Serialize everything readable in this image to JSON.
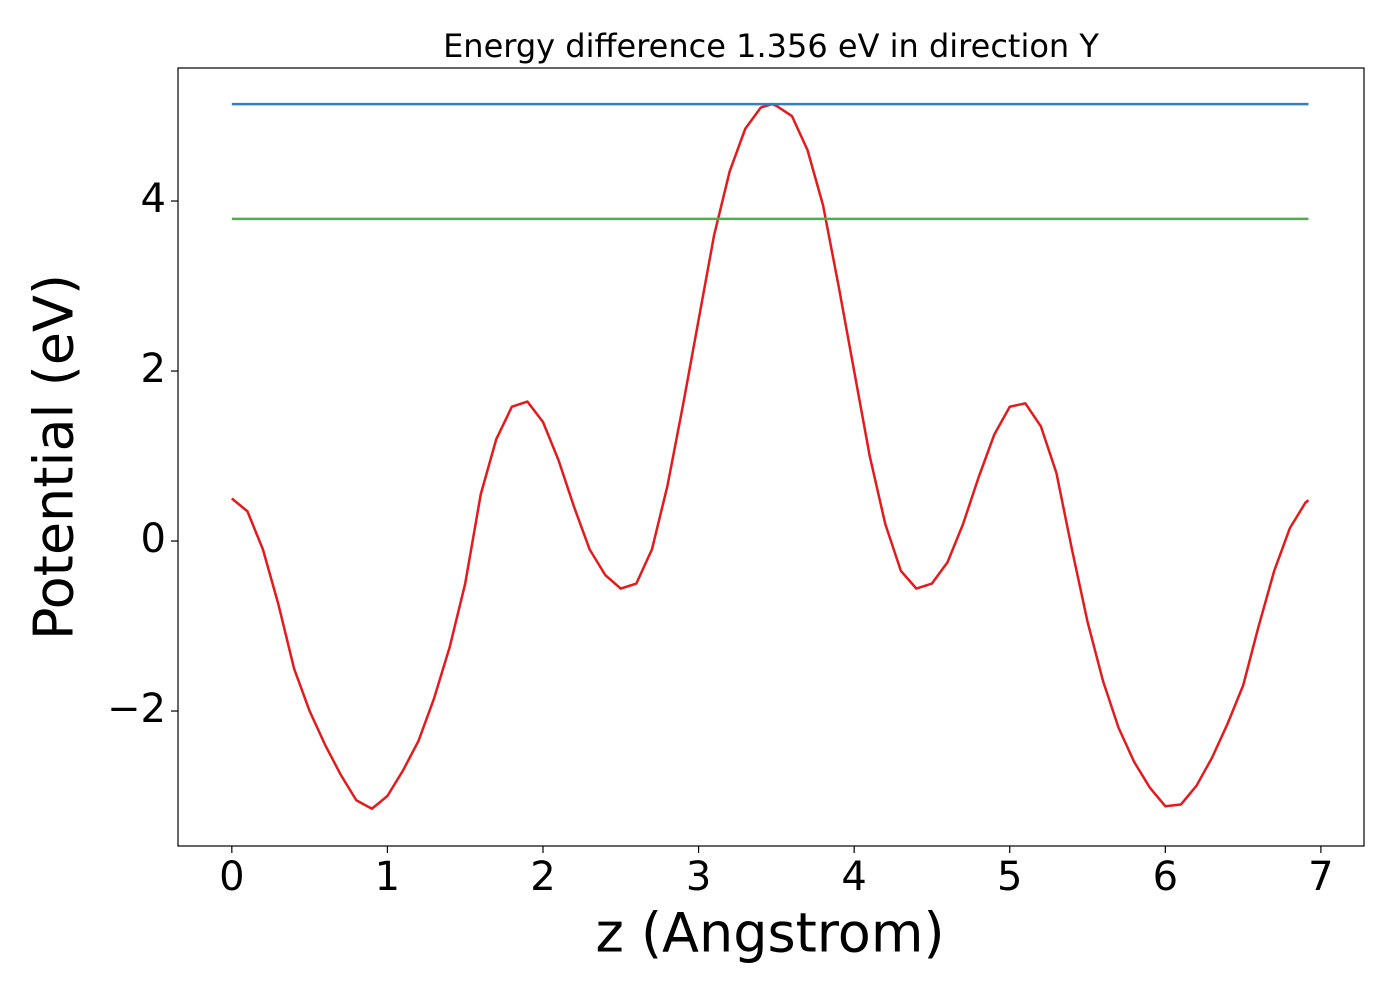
{
  "chart_data": {
    "type": "line",
    "title": "Energy difference 1.356 eV in direction Y",
    "x_label": "z (Angstrom)",
    "y_label": "Potential (eV)",
    "xlim": [
      -0.346,
      7.277
    ],
    "ylim": [
      -3.588,
      5.565
    ],
    "xticks": [
      0,
      1,
      2,
      3,
      4,
      5,
      6,
      7
    ],
    "yticks": [
      {
        "value": -2,
        "label": "−2"
      },
      0,
      2,
      4
    ],
    "grid": false,
    "series": [
      {
        "color": "#e41a1c",
        "x": [
          0,
          0.1,
          0.2,
          0.3,
          0.4,
          0.5,
          0.6,
          0.7,
          0.8,
          0.9,
          1.0,
          1.1,
          1.2,
          1.3,
          1.4,
          1.5,
          1.6,
          1.7,
          1.8,
          1.9,
          2.0,
          2.1,
          2.2,
          2.3,
          2.4,
          2.5,
          2.6,
          2.7,
          2.8,
          2.9,
          3.0,
          3.1,
          3.2,
          3.3,
          3.4,
          3.47,
          3.5,
          3.6,
          3.7,
          3.8,
          3.9,
          4.0,
          4.1,
          4.2,
          4.3,
          4.4,
          4.5,
          4.6,
          4.7,
          4.8,
          4.9,
          5.0,
          5.1,
          5.2,
          5.3,
          5.4,
          5.5,
          5.6,
          5.7,
          5.8,
          5.9,
          6.0,
          6.1,
          6.2,
          6.3,
          6.4,
          6.5,
          6.6,
          6.7,
          6.8,
          6.9,
          6.92
        ],
        "values": [
          0.5,
          0.35,
          -0.1,
          -0.75,
          -1.5,
          -2.0,
          -2.4,
          -2.75,
          -3.05,
          -3.15,
          -3.0,
          -2.7,
          -2.35,
          -1.85,
          -1.25,
          -0.5,
          0.55,
          1.2,
          1.58,
          1.64,
          1.4,
          0.95,
          0.4,
          -0.1,
          -0.4,
          -0.56,
          -0.5,
          -0.1,
          0.65,
          1.6,
          2.6,
          3.6,
          4.35,
          4.85,
          5.1,
          5.14,
          5.12,
          5.0,
          4.6,
          3.95,
          3.0,
          2.0,
          1.0,
          0.2,
          -0.35,
          -0.56,
          -0.5,
          -0.25,
          0.2,
          0.75,
          1.25,
          1.58,
          1.62,
          1.35,
          0.8,
          -0.1,
          -0.95,
          -1.65,
          -2.2,
          -2.6,
          -2.9,
          -3.12,
          -3.1,
          -2.88,
          -2.55,
          -2.15,
          -1.7,
          -1.0,
          -0.35,
          0.15,
          0.45,
          0.48
        ]
      },
      {
        "color": "#377eb8",
        "x": [
          0,
          6.92
        ],
        "values": [
          5.14,
          5.14
        ]
      },
      {
        "color": "#4daf4a",
        "x": [
          0,
          6.92
        ],
        "values": [
          3.79,
          3.79
        ]
      }
    ]
  }
}
